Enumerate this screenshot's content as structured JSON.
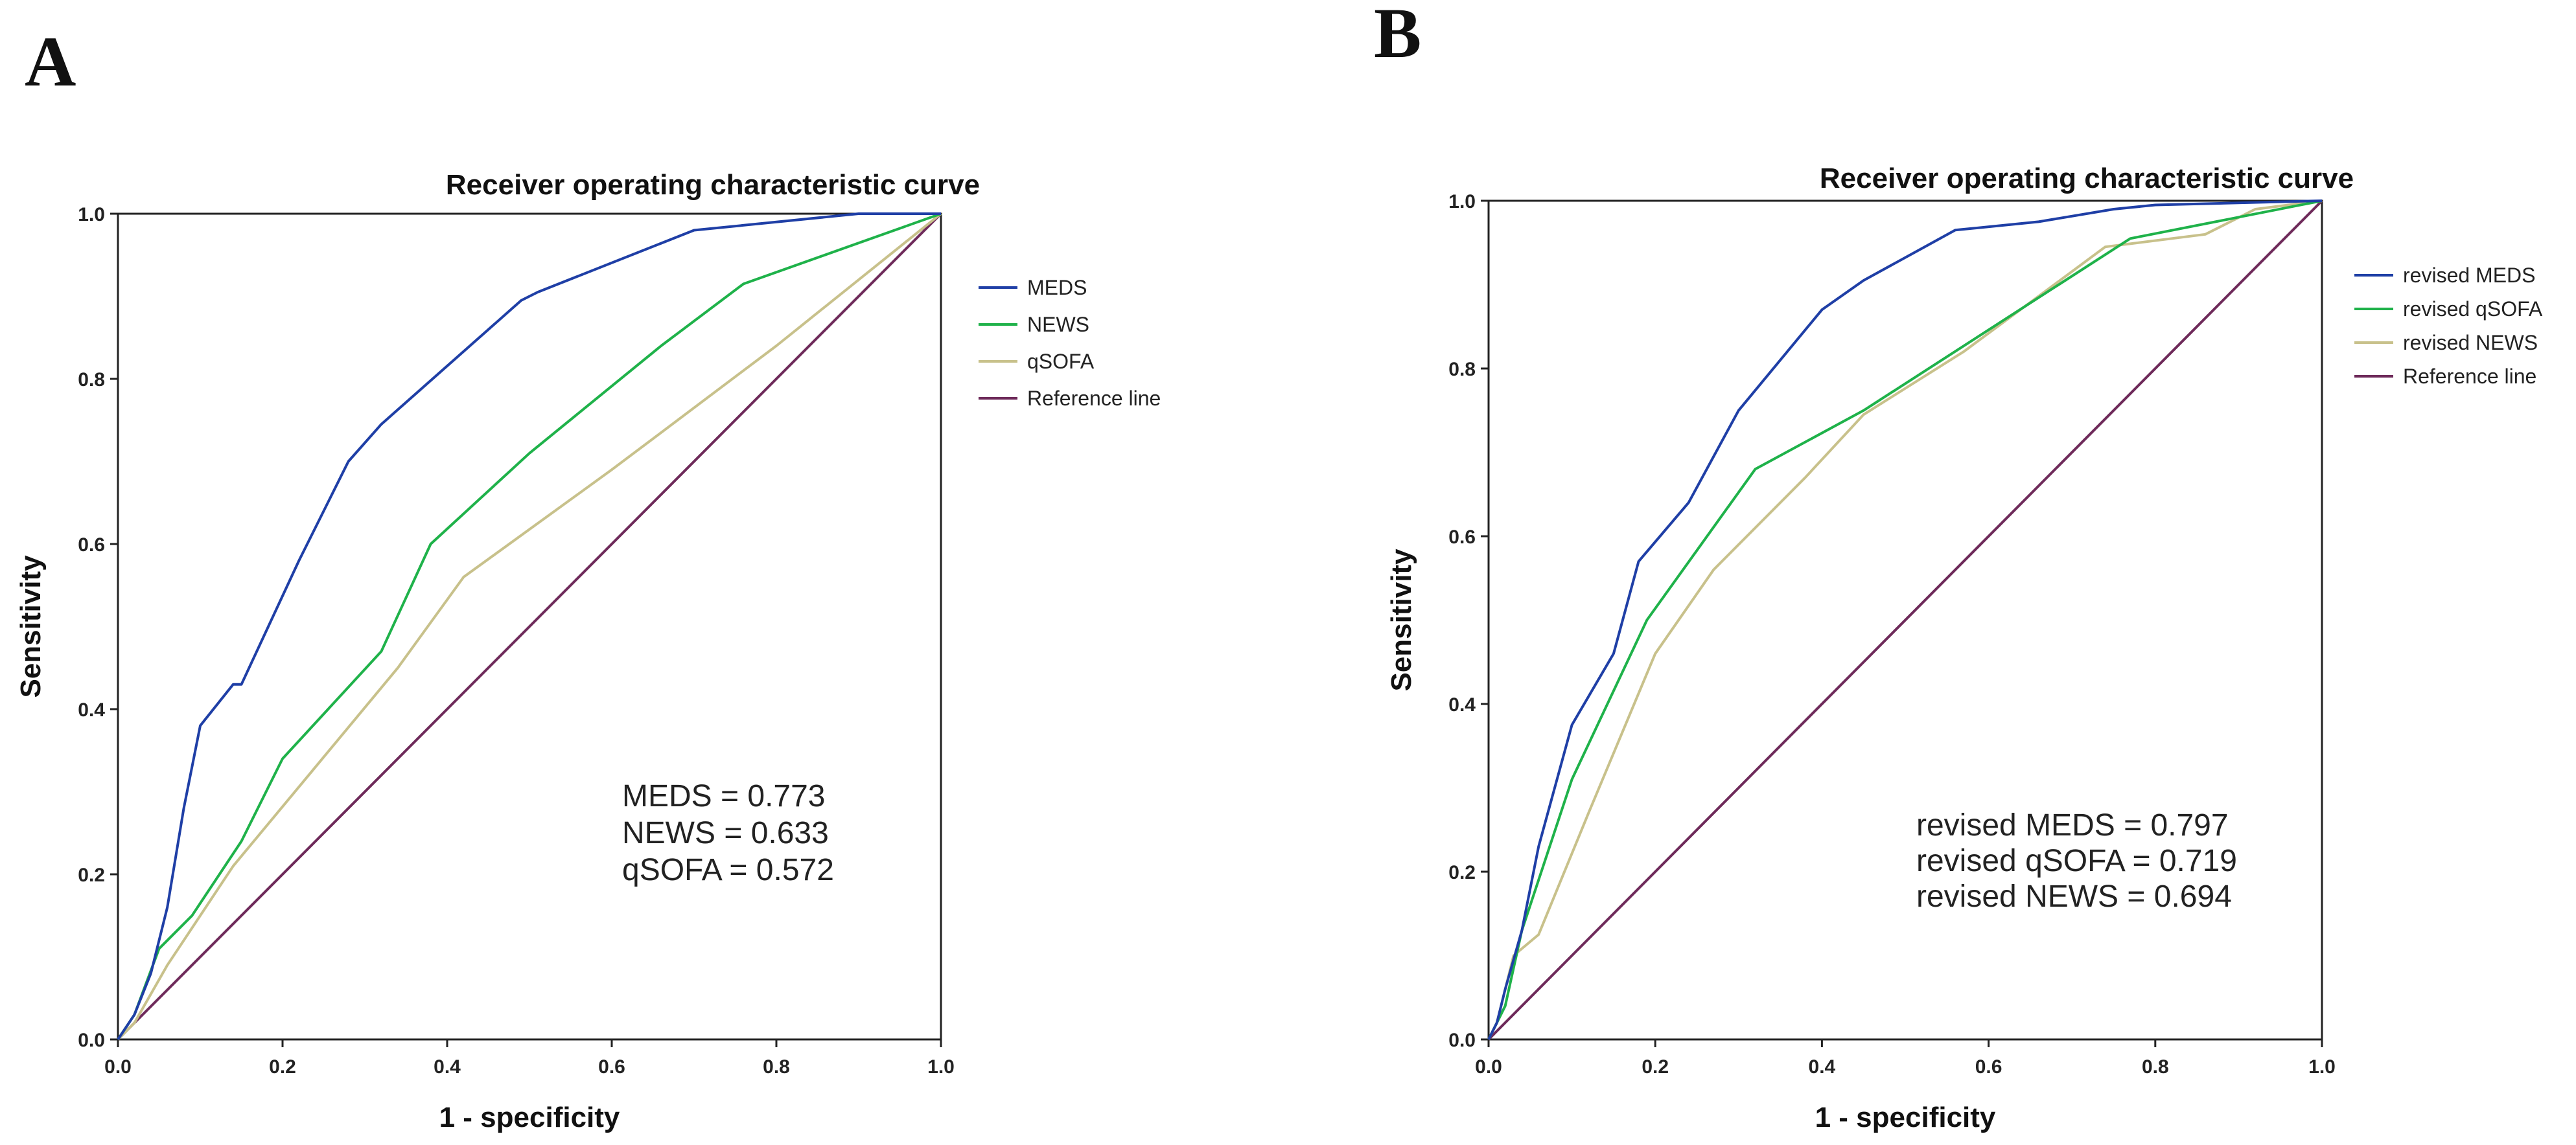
{
  "panels": [
    {
      "letter": "A",
      "chart_data": {
        "type": "line",
        "title": "Receiver operating characteristic curve",
        "xlabel": "1 - specificity",
        "ylabel": "Sensitivity",
        "xlim": [
          0,
          1
        ],
        "ylim": [
          0,
          1
        ],
        "xticks": [
          "0.0",
          "0.2",
          "0.4",
          "0.6",
          "0.8",
          "1.0"
        ],
        "yticks": [
          "0.0",
          "0.2",
          "0.4",
          "0.6",
          "0.8",
          "1.0"
        ],
        "grid": false,
        "legend_position": "right",
        "series": [
          {
            "name": "MEDS",
            "color": "#1f3fa6",
            "points": [
              [
                0,
                0
              ],
              [
                0.02,
                0.03
              ],
              [
                0.04,
                0.08
              ],
              [
                0.06,
                0.16
              ],
              [
                0.08,
                0.28
              ],
              [
                0.1,
                0.38
              ],
              [
                0.14,
                0.43
              ],
              [
                0.15,
                0.43
              ],
              [
                0.22,
                0.58
              ],
              [
                0.28,
                0.7
              ],
              [
                0.32,
                0.745
              ],
              [
                0.49,
                0.895
              ],
              [
                0.51,
                0.905
              ],
              [
                0.7,
                0.98
              ],
              [
                0.8,
                0.99
              ],
              [
                0.9,
                1.0
              ],
              [
                1.0,
                1.0
              ]
            ]
          },
          {
            "name": "NEWS",
            "color": "#1fb24a",
            "points": [
              [
                0,
                0
              ],
              [
                0.02,
                0.03
              ],
              [
                0.05,
                0.11
              ],
              [
                0.09,
                0.15
              ],
              [
                0.15,
                0.24
              ],
              [
                0.2,
                0.34
              ],
              [
                0.32,
                0.47
              ],
              [
                0.38,
                0.6
              ],
              [
                0.5,
                0.71
              ],
              [
                0.66,
                0.84
              ],
              [
                0.76,
                0.915
              ],
              [
                1.0,
                1.0
              ]
            ]
          },
          {
            "name": "qSOFA",
            "color": "#c8c18b",
            "points": [
              [
                0,
                0
              ],
              [
                0.02,
                0.02
              ],
              [
                0.06,
                0.09
              ],
              [
                0.14,
                0.21
              ],
              [
                0.24,
                0.33
              ],
              [
                0.34,
                0.45
              ],
              [
                0.42,
                0.56
              ],
              [
                0.6,
                0.69
              ],
              [
                0.8,
                0.84
              ],
              [
                1.0,
                1.0
              ]
            ]
          },
          {
            "name": "Reference line",
            "color": "#6e2a5a",
            "points": [
              [
                0,
                0
              ],
              [
                1,
                1
              ]
            ]
          }
        ],
        "annotations": [
          "MEDS = 0.773",
          "NEWS = 0.633",
          "qSOFA = 0.572"
        ]
      }
    },
    {
      "letter": "B",
      "chart_data": {
        "type": "line",
        "title": "Receiver operating characteristic curve",
        "xlabel": "1 - specificity",
        "ylabel": "Sensitivity",
        "xlim": [
          0,
          1
        ],
        "ylim": [
          0,
          1
        ],
        "xticks": [
          "0.0",
          "0.2",
          "0.4",
          "0.6",
          "0.8",
          "1.0"
        ],
        "yticks": [
          "0.0",
          "0.2",
          "0.4",
          "0.6",
          "0.8",
          "1.0"
        ],
        "grid": false,
        "legend_position": "right",
        "series": [
          {
            "name": "revised MEDS",
            "color": "#1f3fa6",
            "points": [
              [
                0,
                0
              ],
              [
                0.01,
                0.02
              ],
              [
                0.02,
                0.06
              ],
              [
                0.04,
                0.13
              ],
              [
                0.06,
                0.23
              ],
              [
                0.1,
                0.375
              ],
              [
                0.15,
                0.46
              ],
              [
                0.18,
                0.57
              ],
              [
                0.24,
                0.64
              ],
              [
                0.3,
                0.75
              ],
              [
                0.4,
                0.87
              ],
              [
                0.45,
                0.905
              ],
              [
                0.56,
                0.965
              ],
              [
                0.66,
                0.975
              ],
              [
                0.75,
                0.99
              ],
              [
                0.8,
                0.995
              ],
              [
                1.0,
                1.0
              ]
            ]
          },
          {
            "name": "revised qSOFA",
            "color": "#1fb24a",
            "points": [
              [
                0,
                0
              ],
              [
                0.02,
                0.04
              ],
              [
                0.04,
                0.13
              ],
              [
                0.1,
                0.31
              ],
              [
                0.19,
                0.5
              ],
              [
                0.32,
                0.68
              ],
              [
                0.45,
                0.75
              ],
              [
                0.77,
                0.955
              ],
              [
                1.0,
                1.0
              ]
            ]
          },
          {
            "name": "revised NEWS",
            "color": "#c8c18b",
            "points": [
              [
                0,
                0
              ],
              [
                0.01,
                0.02
              ],
              [
                0.03,
                0.1
              ],
              [
                0.06,
                0.125
              ],
              [
                0.12,
                0.27
              ],
              [
                0.2,
                0.46
              ],
              [
                0.27,
                0.56
              ],
              [
                0.38,
                0.67
              ],
              [
                0.45,
                0.745
              ],
              [
                0.57,
                0.82
              ],
              [
                0.74,
                0.945
              ],
              [
                0.86,
                0.96
              ],
              [
                0.92,
                0.99
              ],
              [
                1.0,
                1.0
              ]
            ]
          },
          {
            "name": "Reference line",
            "color": "#6e2a5a",
            "points": [
              [
                0,
                0
              ],
              [
                1,
                1
              ]
            ]
          }
        ],
        "annotations": [
          "revised MEDS = 0.797",
          "revised qSOFA = 0.719",
          "revised NEWS = 0.694"
        ]
      }
    }
  ]
}
